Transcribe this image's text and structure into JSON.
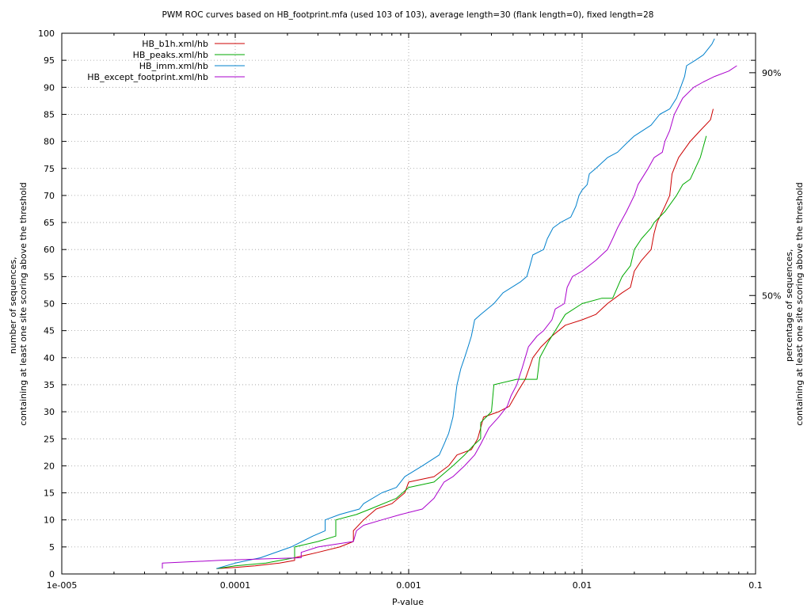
{
  "chart_data": {
    "type": "line",
    "title": "PWM ROC curves based on HB_footprint.mfa (used 103 of 103), average length=30 (flank length=0), fixed length=28",
    "xlabel": "P-value",
    "ylabel_lines": [
      "number of sequences,",
      "containing at least one site scoring above the threshold"
    ],
    "y2label_lines": [
      "percentage of sequences,",
      "containing at least one site scoring above the threshold"
    ],
    "x_scale": "log",
    "xlim": [
      1e-05,
      0.1
    ],
    "ylim": [
      0,
      100
    ],
    "x_ticks": [
      {
        "value": 1e-05,
        "label": "1e-005"
      },
      {
        "value": 0.0001,
        "label": "0.0001"
      },
      {
        "value": 0.001,
        "label": "0.001"
      },
      {
        "value": 0.01,
        "label": "0.01"
      },
      {
        "value": 0.1,
        "label": "0.1"
      }
    ],
    "y_ticks": [
      0,
      5,
      10,
      15,
      20,
      25,
      30,
      35,
      40,
      45,
      50,
      55,
      60,
      65,
      70,
      75,
      80,
      85,
      90,
      95,
      100
    ],
    "y2_ticks": [
      {
        "value": 51.5,
        "label": "50%"
      },
      {
        "value": 92.7,
        "label": "90%"
      }
    ],
    "grid": true,
    "legend_position": "top-left",
    "series": [
      {
        "name": "HB_b1h.xml/hb",
        "color": "#cc0000",
        "points": [
          [
            7.8e-05,
            1
          ],
          [
            0.0001,
            1.2
          ],
          [
            0.00013,
            1.5
          ],
          [
            0.00018,
            2
          ],
          [
            0.00022,
            2.5
          ],
          [
            0.00022,
            3
          ],
          [
            0.0003,
            4
          ],
          [
            0.0004,
            5
          ],
          [
            0.00048,
            6
          ],
          [
            0.00048,
            8
          ],
          [
            0.00055,
            10
          ],
          [
            0.00065,
            12
          ],
          [
            0.0008,
            13
          ],
          [
            0.00095,
            15
          ],
          [
            0.001,
            17
          ],
          [
            0.0014,
            18
          ],
          [
            0.0017,
            20
          ],
          [
            0.0019,
            22
          ],
          [
            0.0023,
            23
          ],
          [
            0.0025,
            25
          ],
          [
            0.0026,
            27
          ],
          [
            0.0027,
            29
          ],
          [
            0.0033,
            30
          ],
          [
            0.0038,
            31
          ],
          [
            0.0043,
            34
          ],
          [
            0.0047,
            36
          ],
          [
            0.0052,
            40
          ],
          [
            0.0058,
            42
          ],
          [
            0.0067,
            44
          ],
          [
            0.008,
            46
          ],
          [
            0.01,
            47
          ],
          [
            0.012,
            48
          ],
          [
            0.014,
            50
          ],
          [
            0.017,
            52
          ],
          [
            0.019,
            53
          ],
          [
            0.02,
            56
          ],
          [
            0.022,
            58
          ],
          [
            0.025,
            60
          ],
          [
            0.026,
            63
          ],
          [
            0.027,
            65
          ],
          [
            0.028,
            66
          ],
          [
            0.03,
            68
          ],
          [
            0.032,
            70
          ],
          [
            0.033,
            74
          ],
          [
            0.036,
            77
          ],
          [
            0.042,
            80
          ],
          [
            0.048,
            82
          ],
          [
            0.055,
            84
          ],
          [
            0.057,
            86
          ]
        ]
      },
      {
        "name": "HB_peaks.xml/hb",
        "color": "#00aa00",
        "points": [
          [
            7.8e-05,
            1
          ],
          [
            0.0001,
            1.5
          ],
          [
            0.00015,
            2
          ],
          [
            0.00022,
            3
          ],
          [
            0.00022,
            5
          ],
          [
            0.0003,
            6
          ],
          [
            0.00038,
            7
          ],
          [
            0.00038,
            10
          ],
          [
            0.0005,
            11
          ],
          [
            0.0006,
            12
          ],
          [
            0.00085,
            14
          ],
          [
            0.001,
            16
          ],
          [
            0.0014,
            17
          ],
          [
            0.0018,
            20
          ],
          [
            0.0021,
            22
          ],
          [
            0.0024,
            24
          ],
          [
            0.0026,
            25
          ],
          [
            0.0026,
            28
          ],
          [
            0.003,
            30
          ],
          [
            0.0031,
            35
          ],
          [
            0.0042,
            36
          ],
          [
            0.0055,
            36
          ],
          [
            0.0057,
            40
          ],
          [
            0.0064,
            43
          ],
          [
            0.007,
            45
          ],
          [
            0.008,
            48
          ],
          [
            0.01,
            50
          ],
          [
            0.013,
            51
          ],
          [
            0.015,
            51
          ],
          [
            0.017,
            55
          ],
          [
            0.019,
            57
          ],
          [
            0.02,
            60
          ],
          [
            0.022,
            62
          ],
          [
            0.025,
            64
          ],
          [
            0.026,
            65
          ],
          [
            0.03,
            67
          ],
          [
            0.035,
            70
          ],
          [
            0.038,
            72
          ],
          [
            0.042,
            73
          ],
          [
            0.048,
            77
          ],
          [
            0.052,
            81
          ]
        ]
      },
      {
        "name": "HB_imm.xml/hb",
        "color": "#0080cc",
        "points": [
          [
            7.8e-05,
            1
          ],
          [
            0.0001,
            2
          ],
          [
            0.00014,
            3
          ],
          [
            0.00021,
            5
          ],
          [
            0.00028,
            7
          ],
          [
            0.00033,
            8
          ],
          [
            0.00033,
            10
          ],
          [
            0.0004,
            11
          ],
          [
            0.00052,
            12
          ],
          [
            0.00055,
            13
          ],
          [
            0.0007,
            15
          ],
          [
            0.00085,
            16
          ],
          [
            0.00095,
            18
          ],
          [
            0.0012,
            20
          ],
          [
            0.0015,
            22
          ],
          [
            0.0016,
            24
          ],
          [
            0.0017,
            26
          ],
          [
            0.0018,
            29
          ],
          [
            0.0019,
            35
          ],
          [
            0.002,
            38
          ],
          [
            0.0021,
            40
          ],
          [
            0.0022,
            42
          ],
          [
            0.0023,
            44
          ],
          [
            0.0024,
            47
          ],
          [
            0.0026,
            48
          ],
          [
            0.0031,
            50
          ],
          [
            0.0035,
            52
          ],
          [
            0.0044,
            54
          ],
          [
            0.0048,
            55
          ],
          [
            0.005,
            57
          ],
          [
            0.0052,
            59
          ],
          [
            0.006,
            60
          ],
          [
            0.0063,
            62
          ],
          [
            0.0068,
            64
          ],
          [
            0.0075,
            65
          ],
          [
            0.0086,
            66
          ],
          [
            0.0092,
            68
          ],
          [
            0.0096,
            70
          ],
          [
            0.01,
            71
          ],
          [
            0.0107,
            72
          ],
          [
            0.011,
            74
          ],
          [
            0.012,
            75
          ],
          [
            0.014,
            77
          ],
          [
            0.016,
            78
          ],
          [
            0.0185,
            80
          ],
          [
            0.02,
            81
          ],
          [
            0.025,
            83
          ],
          [
            0.028,
            85
          ],
          [
            0.032,
            86
          ],
          [
            0.035,
            88
          ],
          [
            0.037,
            90
          ],
          [
            0.039,
            92
          ],
          [
            0.04,
            94
          ],
          [
            0.045,
            95
          ],
          [
            0.05,
            96
          ],
          [
            0.056,
            98
          ],
          [
            0.058,
            99
          ]
        ]
      },
      {
        "name": "HB_except_footprint.xml/hb",
        "color": "#aa00cc",
        "points": [
          [
            3.8e-05,
            1
          ],
          [
            3.8e-05,
            2
          ],
          [
            8e-05,
            2.5
          ],
          [
            0.00015,
            2.8
          ],
          [
            0.00024,
            3
          ],
          [
            0.00024,
            4
          ],
          [
            0.0003,
            5
          ],
          [
            0.00048,
            6
          ],
          [
            0.0005,
            8
          ],
          [
            0.00055,
            9
          ],
          [
            0.0007,
            10
          ],
          [
            0.0009,
            11
          ],
          [
            0.0012,
            12
          ],
          [
            0.0014,
            14
          ],
          [
            0.0016,
            17
          ],
          [
            0.0018,
            18
          ],
          [
            0.0021,
            20
          ],
          [
            0.0024,
            22
          ],
          [
            0.0026,
            24
          ],
          [
            0.0029,
            27
          ],
          [
            0.0033,
            29
          ],
          [
            0.0037,
            31
          ],
          [
            0.0039,
            33
          ],
          [
            0.0042,
            35
          ],
          [
            0.0045,
            38
          ],
          [
            0.0047,
            40
          ],
          [
            0.0049,
            42
          ],
          [
            0.0055,
            44
          ],
          [
            0.006,
            45
          ],
          [
            0.0067,
            47
          ],
          [
            0.007,
            49
          ],
          [
            0.0079,
            50
          ],
          [
            0.0082,
            53
          ],
          [
            0.0088,
            55
          ],
          [
            0.01,
            56
          ],
          [
            0.012,
            58
          ],
          [
            0.014,
            60
          ],
          [
            0.015,
            62
          ],
          [
            0.016,
            64
          ],
          [
            0.018,
            67
          ],
          [
            0.02,
            70
          ],
          [
            0.021,
            72
          ],
          [
            0.024,
            75
          ],
          [
            0.026,
            77
          ],
          [
            0.029,
            78
          ],
          [
            0.03,
            80
          ],
          [
            0.032,
            82
          ],
          [
            0.034,
            85
          ],
          [
            0.038,
            88
          ],
          [
            0.044,
            90
          ],
          [
            0.05,
            91
          ],
          [
            0.058,
            92
          ],
          [
            0.07,
            93
          ],
          [
            0.078,
            94
          ]
        ]
      }
    ]
  }
}
